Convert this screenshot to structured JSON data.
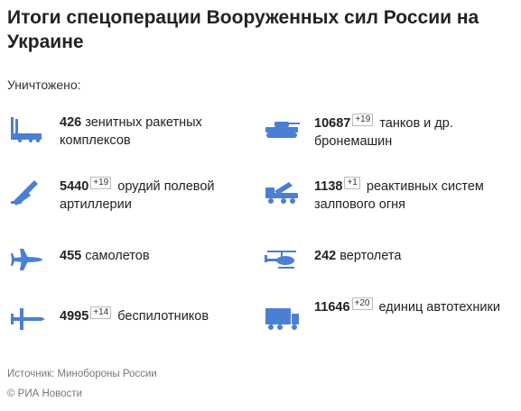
{
  "header": {
    "title": "Итоги спецоперации Вооруженных сил России на Украине",
    "subtitle": "Уничтожено:"
  },
  "items": [
    {
      "value": "426",
      "delta": "",
      "label": "зенитных ракетных комплексов",
      "icon": "air-defense-icon"
    },
    {
      "value": "10687",
      "delta": "+19",
      "label": "танков и др. бронемашин",
      "icon": "tank-icon"
    },
    {
      "value": "5440",
      "delta": "+19",
      "label": "орудий полевой артиллерии",
      "icon": "artillery-icon"
    },
    {
      "value": "1138",
      "delta": "+1",
      "label": "реактивных систем залпового огня",
      "icon": "rocket-launcher-icon"
    },
    {
      "value": "455",
      "delta": "",
      "label": "самолетов",
      "icon": "airplane-icon"
    },
    {
      "value": "242",
      "delta": "",
      "label": "вертолета",
      "icon": "helicopter-icon"
    },
    {
      "value": "4995",
      "delta": "+14",
      "label": "беспилотников",
      "icon": "drone-icon"
    },
    {
      "value": "11646",
      "delta": "+20",
      "label": "единиц автотехники",
      "icon": "truck-icon"
    }
  ],
  "footer": {
    "source": "Источник: Минобороны России",
    "copyright": "© РИА Новости"
  },
  "colors": {
    "icon": "#4a7fd4"
  }
}
